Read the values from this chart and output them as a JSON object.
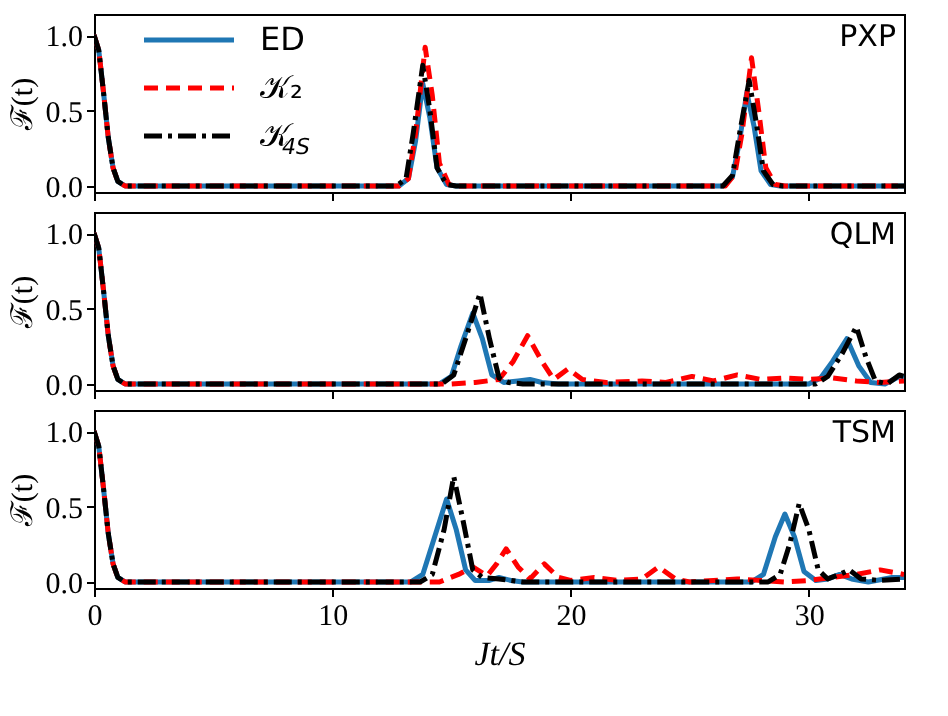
{
  "chart_data": [
    {
      "type": "line",
      "ylabel": "ℱ(t)",
      "annotations": [
        "PXP"
      ],
      "legend": "top left",
      "tick_labels": "y",
      "grid": false,
      "xlim": [
        0,
        34
      ],
      "xticks": [
        0,
        10,
        20,
        30
      ],
      "ylim": [
        -0.04,
        1.14
      ],
      "yticks": [
        {
          "value": 0,
          "label": "0.0"
        },
        {
          "value": 0.5,
          "label": "0.5"
        },
        {
          "value": 1,
          "label": "1.0"
        }
      ],
      "series": [
        {
          "name": "ED",
          "color": "#1f77b4",
          "line_style": "solid",
          "x": [
            0,
            0.2,
            0.4,
            0.6,
            0.8,
            1.0,
            1.3,
            12.8,
            13.2,
            13.5,
            13.8,
            14.1,
            14.4,
            14.8,
            15.2,
            26.4,
            26.8,
            27.1,
            27.4,
            27.7,
            28.0,
            28.4,
            28.8,
            34
          ],
          "values": [
            1,
            0.9,
            0.62,
            0.32,
            0.12,
            0.03,
            0,
            0,
            0.05,
            0.3,
            0.68,
            0.45,
            0.12,
            0.01,
            0,
            0,
            0.06,
            0.3,
            0.62,
            0.4,
            0.1,
            0.01,
            0,
            0
          ]
        },
        {
          "name": "𝒦₂",
          "color": "#ff0000",
          "line_style": "dashed",
          "x": [
            0,
            0.2,
            0.4,
            0.6,
            0.8,
            1.0,
            1.3,
            12.8,
            13.2,
            13.5,
            13.9,
            14.2,
            14.5,
            14.9,
            15.3,
            26.5,
            26.9,
            27.2,
            27.6,
            27.9,
            28.2,
            28.6,
            29,
            34
          ],
          "values": [
            1,
            0.9,
            0.62,
            0.32,
            0.12,
            0.03,
            0,
            0,
            0.05,
            0.35,
            0.92,
            0.6,
            0.15,
            0.01,
            0,
            0,
            0.08,
            0.35,
            0.85,
            0.5,
            0.12,
            0.01,
            0,
            0
          ]
        },
        {
          "name": "𝒦$_{4S}$",
          "color": "#000000",
          "line_style": "dashdot",
          "x": [
            0,
            0.2,
            0.4,
            0.6,
            0.8,
            1.0,
            1.3,
            12.7,
            13.1,
            13.4,
            13.8,
            14.1,
            14.4,
            14.8,
            15.2,
            26.4,
            26.8,
            27.1,
            27.5,
            27.8,
            28.1,
            28.5,
            28.9,
            34
          ],
          "values": [
            1,
            0.9,
            0.62,
            0.32,
            0.12,
            0.03,
            0,
            0,
            0.05,
            0.35,
            0.8,
            0.5,
            0.12,
            0.01,
            0,
            0,
            0.07,
            0.35,
            0.7,
            0.42,
            0.1,
            0.01,
            0,
            0
          ]
        }
      ]
    },
    {
      "type": "line",
      "ylabel": "ℱ(t)",
      "annotations": [
        "QLM"
      ],
      "tick_labels": "y",
      "grid": false,
      "xlim": [
        0,
        34
      ],
      "xticks": [
        0,
        10,
        20,
        30
      ],
      "ylim": [
        -0.04,
        1.14
      ],
      "yticks": [
        {
          "value": 0,
          "label": "0.0"
        },
        {
          "value": 0.5,
          "label": "0.5"
        },
        {
          "value": 1,
          "label": "1.0"
        }
      ],
      "series": [
        {
          "color": "#1f77b4",
          "line_style": "solid",
          "x": [
            0,
            0.2,
            0.4,
            0.6,
            0.8,
            1.0,
            1.3,
            14.5,
            15.0,
            15.4,
            15.9,
            16.3,
            16.7,
            17.2,
            17.8,
            18.3,
            18.8,
            19.5,
            30,
            30.5,
            31,
            31.6,
            32.1,
            32.6,
            33.2,
            33.8,
            34
          ],
          "values": [
            1,
            0.9,
            0.62,
            0.32,
            0.12,
            0.03,
            0,
            0,
            0.05,
            0.25,
            0.47,
            0.3,
            0.06,
            0.01,
            0.02,
            0.03,
            0.01,
            0,
            0,
            0.04,
            0.15,
            0.3,
            0.12,
            0.01,
            0,
            0.05,
            0.04
          ]
        },
        {
          "color": "#ff0000",
          "line_style": "dashed",
          "x": [
            0,
            0.2,
            0.4,
            0.6,
            0.8,
            1.0,
            1.3,
            15,
            16,
            17,
            17.6,
            18.2,
            18.8,
            19.3,
            19.9,
            20.5,
            21.5,
            23,
            24,
            25.1,
            26,
            27,
            28,
            29,
            30,
            31,
            32,
            33,
            34
          ],
          "values": [
            1,
            0.9,
            0.62,
            0.32,
            0.12,
            0.03,
            0,
            0,
            0.01,
            0.03,
            0.15,
            0.32,
            0.15,
            0.03,
            0.1,
            0.03,
            0.01,
            0.02,
            0.01,
            0.05,
            0.02,
            0.06,
            0.03,
            0.04,
            0.03,
            0.04,
            0.02,
            0.01,
            0.02
          ]
        },
        {
          "color": "#000000",
          "line_style": "dashdot",
          "x": [
            0,
            0.2,
            0.4,
            0.6,
            0.8,
            1.0,
            1.3,
            14.6,
            15.1,
            15.6,
            16.2,
            16.6,
            17,
            17.4,
            18,
            30.3,
            30.8,
            31.4,
            32,
            32.4,
            32.8,
            33.3,
            33.8,
            34
          ],
          "values": [
            1,
            0.9,
            0.62,
            0.32,
            0.12,
            0.03,
            0,
            0,
            0.06,
            0.3,
            0.6,
            0.3,
            0.04,
            0.01,
            0,
            0,
            0.05,
            0.2,
            0.38,
            0.18,
            0.02,
            0,
            0.06,
            0.05
          ]
        }
      ]
    },
    {
      "type": "line",
      "ylabel": "ℱ(t)",
      "xlabel": "Jt/S",
      "annotations": [
        "TSM"
      ],
      "grid": false,
      "xlim": [
        0,
        34
      ],
      "xticks": [
        0,
        10,
        20,
        30
      ],
      "ylim": [
        -0.04,
        1.14
      ],
      "yticks": [
        {
          "value": 0,
          "label": "0.0"
        },
        {
          "value": 0.5,
          "label": "0.5"
        },
        {
          "value": 1,
          "label": "1.0"
        }
      ],
      "series": [
        {
          "color": "#1f77b4",
          "line_style": "solid",
          "x": [
            0,
            0.2,
            0.4,
            0.6,
            0.8,
            1.0,
            1.3,
            13.3,
            13.8,
            14.3,
            14.8,
            15.2,
            15.6,
            16,
            16.6,
            17,
            17.5,
            18,
            27.6,
            28.1,
            28.6,
            29.0,
            29.4,
            29.8,
            30.3,
            30.8,
            31.3,
            31.8,
            32.5,
            33.5,
            34
          ],
          "values": [
            1,
            0.9,
            0.62,
            0.32,
            0.12,
            0.03,
            0,
            0,
            0.05,
            0.3,
            0.55,
            0.35,
            0.08,
            0.01,
            0.01,
            0.03,
            0.01,
            0,
            0,
            0.05,
            0.3,
            0.45,
            0.3,
            0.07,
            0.01,
            0.02,
            0.05,
            0.02,
            0,
            0.03,
            0.03
          ]
        },
        {
          "color": "#ff0000",
          "line_style": "dashed",
          "x": [
            0,
            0.2,
            0.4,
            0.6,
            0.8,
            1.0,
            1.3,
            14.5,
            15.3,
            15.9,
            16.5,
            16.9,
            17.3,
            17.8,
            18.3,
            18.9,
            19.5,
            20,
            21,
            22,
            23,
            23.7,
            24.4,
            25,
            26,
            27,
            28,
            29,
            30,
            31,
            32,
            33,
            34
          ],
          "values": [
            1,
            0.9,
            0.62,
            0.32,
            0.12,
            0.03,
            0,
            0,
            0.05,
            0.1,
            0.04,
            0.12,
            0.22,
            0.1,
            0.02,
            0.12,
            0.03,
            0.01,
            0.03,
            0.01,
            0.02,
            0.1,
            0.02,
            0,
            0.01,
            0.02,
            0.01,
            0,
            0.01,
            0.03,
            0.05,
            0.08,
            0.05
          ]
        },
        {
          "color": "#000000",
          "line_style": "dashdot",
          "x": [
            0,
            0.2,
            0.4,
            0.6,
            0.8,
            1.0,
            1.3,
            13.7,
            14.2,
            14.7,
            15.1,
            15.5,
            15.9,
            16.3,
            17,
            18,
            28.3,
            28.8,
            29.2,
            29.6,
            30,
            30.4,
            30.8,
            31.3,
            31.7,
            32.2,
            33,
            34
          ],
          "values": [
            1,
            0.9,
            0.62,
            0.32,
            0.12,
            0.03,
            0,
            0,
            0.05,
            0.35,
            0.7,
            0.4,
            0.08,
            0.03,
            0.02,
            0,
            0,
            0.05,
            0.25,
            0.52,
            0.35,
            0.08,
            0.02,
            0.05,
            0.08,
            0.02,
            0.01,
            0.02
          ]
        }
      ]
    }
  ]
}
